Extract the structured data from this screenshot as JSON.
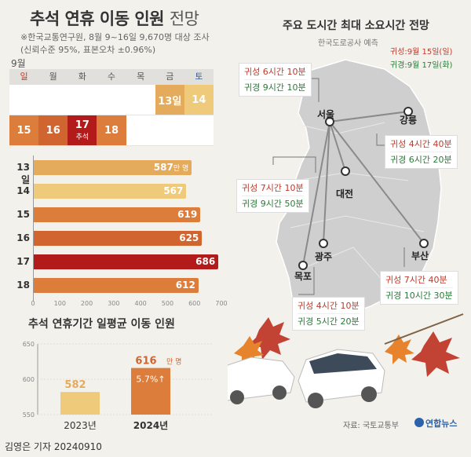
{
  "header": {
    "title_main": "추석 연휴 이동 인원",
    "title_suffix": "전망",
    "note_line1": "※한국교통연구원, 8월 9~16일 9,670명 대상 조사",
    "note_line2": "(신뢰수준 95%, 표본오차 ±0.96%)"
  },
  "calendar": {
    "month": "9월",
    "weekdays": [
      "일",
      "월",
      "화",
      "수",
      "목",
      "금",
      "토"
    ],
    "row1": [
      "",
      "",
      "",
      "",
      "",
      "13일",
      "14"
    ],
    "row2": [
      "15",
      "16",
      "17",
      "18",
      "",
      "",
      ""
    ],
    "holiday_note": "추석"
  },
  "daily_unit": "만 명",
  "chart_data": [
    {
      "type": "bar",
      "orientation": "horizontal",
      "categories": [
        "13일",
        "14",
        "15",
        "16",
        "17",
        "18"
      ],
      "values": [
        587,
        567,
        619,
        625,
        686,
        612
      ],
      "xlim": [
        0,
        700
      ],
      "xticks": [
        "0",
        "100",
        "200",
        "300",
        "400",
        "500",
        "600",
        "700"
      ],
      "colors": [
        "#e5ab5d",
        "#efca7a",
        "#dc7d3c",
        "#d16530",
        "#b31b1b",
        "#dc7d3c"
      ]
    },
    {
      "type": "bar",
      "title": "추석 연휴기간 일평균 이동 인원",
      "categories": [
        "2023년",
        "2024년"
      ],
      "values": [
        582,
        616
      ],
      "value_labels": [
        "582",
        "616"
      ],
      "unit": "만 명",
      "change": "5.7%↑",
      "ylim": [
        550,
        650
      ],
      "yticks": [
        "650",
        "600",
        "550"
      ],
      "colors": [
        "#efca7a",
        "#dc7d3c"
      ]
    }
  ],
  "map": {
    "title": "주요 도시간 최대 소요시간 전망",
    "subtitle": "한국도로공사 예측",
    "legend_home": "귀성:9월 15일(일)",
    "legend_return": "귀경:9월 17일(화)",
    "cities": [
      "서울",
      "강릉",
      "대전",
      "광주",
      "목포",
      "부산"
    ],
    "routes": [
      {
        "to": "강릉",
        "home": "귀성 4시간 40분",
        "return": "귀경 6시간 20분"
      },
      {
        "to": "대전",
        "home": "귀성 7시간 10분",
        "return": "귀경 9시간 50분"
      },
      {
        "to": "부산",
        "home": "귀성 7시간 40분",
        "return": "귀경 10시간 30분"
      },
      {
        "to": "광주",
        "home": "귀성 4시간 10분",
        "return": "귀경 5시간 20분"
      },
      {
        "to": "목포",
        "home": "귀성 6시간 10분",
        "return": "귀경 9시간 10분"
      }
    ]
  },
  "footer": {
    "credit": "김영은 기자  20240910",
    "source": "자료: 국토교통부",
    "agency": "연합뉴스"
  }
}
